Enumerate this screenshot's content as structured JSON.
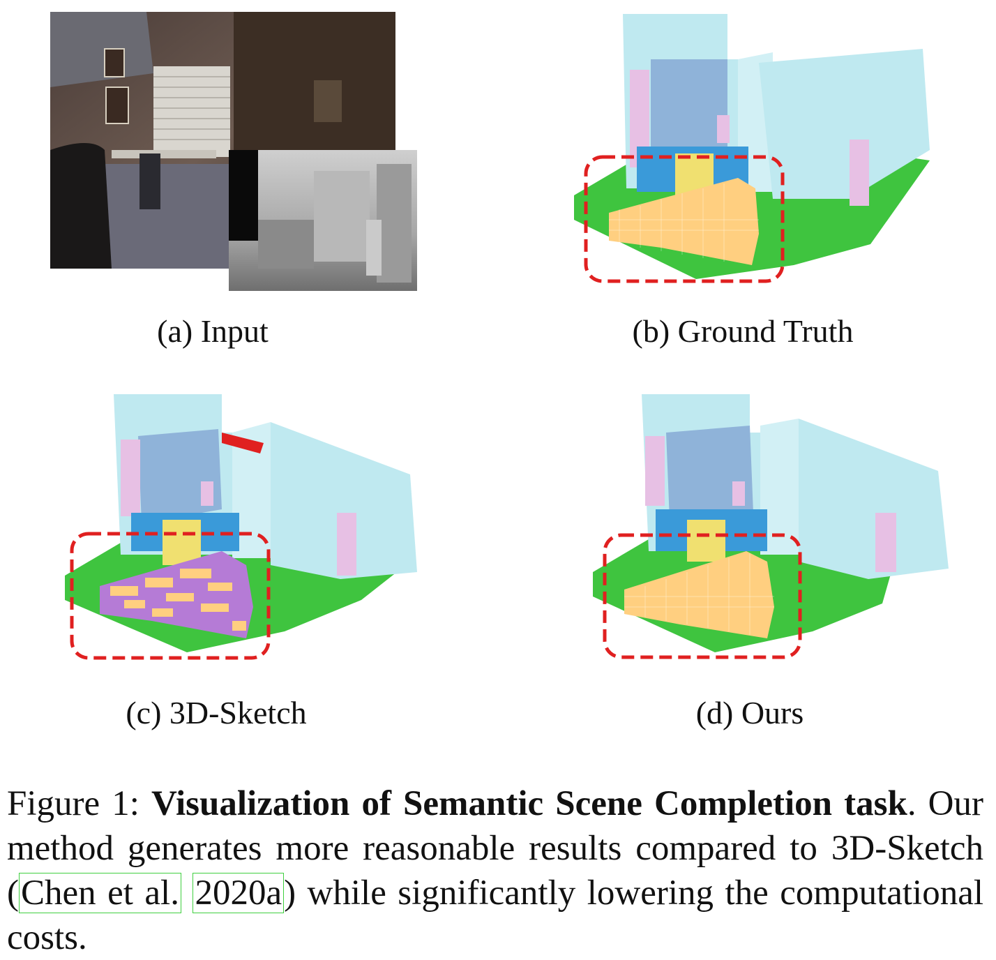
{
  "figure": {
    "subcaptions": {
      "a": "(a) Input",
      "b": "(b) Ground Truth",
      "c": "(c) 3D-Sketch",
      "d": "(d) Ours"
    },
    "caption": {
      "label": "Figure 1:",
      "title": "Visualization of Semantic Scene Completion task",
      "text_before_cite": ". Our method generates more reasonable results compared to 3D-Sketch (",
      "cite_authors": "Chen et al.",
      "cite_year": "2020a",
      "text_after_cite": ") while significantly lowering the computational costs."
    }
  },
  "colors": {
    "wall": "#bfe9f0",
    "wall_shadow": "#8fb3d9",
    "floor": "#3fc43f",
    "bed": "#ffcf80",
    "table": "#3a9ad9",
    "chair": "#f0e070",
    "furniture": "#e7c0e4",
    "error": "#b57bd6",
    "highlight": "#e02020"
  }
}
